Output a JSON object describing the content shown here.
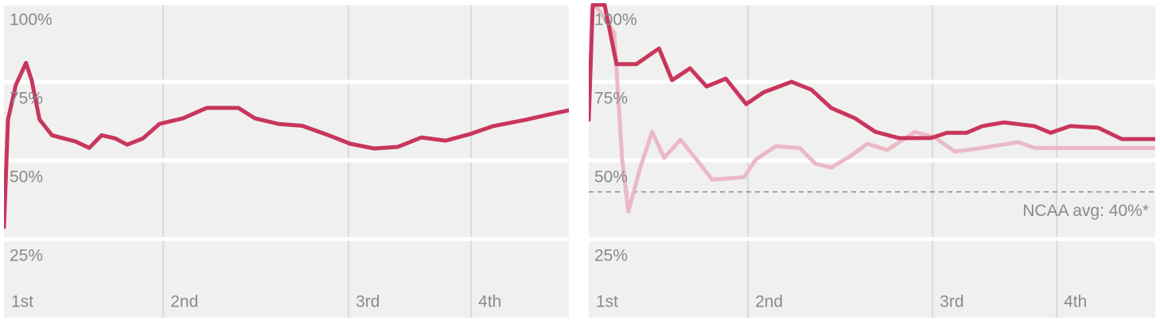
{
  "chart_data": [
    {
      "type": "line",
      "xlim": [
        0,
        100
      ],
      "ylim": [
        0,
        100
      ],
      "xticks": [
        {
          "value": 0,
          "label": "1st"
        },
        {
          "value": 28.2,
          "label": "2nd"
        },
        {
          "value": 61,
          "label": "3rd"
        },
        {
          "value": 82.7,
          "label": "4th"
        }
      ],
      "yticks": [
        {
          "value": 25,
          "label": "25%"
        },
        {
          "value": 50,
          "label": "50%"
        },
        {
          "value": 75,
          "label": "75%"
        },
        {
          "value": 100,
          "label": "100%"
        }
      ],
      "series": [
        {
          "color": "#c8365c",
          "x": [
            0,
            0.7,
            2.1,
            3.9,
            4.9,
            6.3,
            8.5,
            10.6,
            12.7,
            15.1,
            17.3,
            19.7,
            21.8,
            24.6,
            27.5,
            31.7,
            35.9,
            41.5,
            44.4,
            48.6,
            52.8,
            57,
            61.3,
            65.5,
            69.7,
            73.9,
            78.2,
            82.4,
            86.6,
            92.3,
            96.5,
            100
          ],
          "values": [
            28.8,
            62.9,
            74,
            81,
            75.5,
            63,
            58,
            57,
            56,
            54,
            58,
            57,
            55,
            57,
            61.6,
            63.4,
            66.7,
            66.7,
            63.4,
            61.6,
            61,
            58.3,
            55.3,
            53.8,
            54.3,
            57.3,
            56.3,
            58.3,
            60.9,
            62.9,
            64.6,
            65.9
          ]
        }
      ]
    },
    {
      "type": "line",
      "xlim": [
        0,
        100
      ],
      "ylim": [
        0,
        100
      ],
      "xticks": [
        {
          "value": 0,
          "label": "1st"
        },
        {
          "value": 28.1,
          "label": "2nd"
        },
        {
          "value": 60.7,
          "label": "3rd"
        },
        {
          "value": 82.6,
          "label": "4th"
        }
      ],
      "yticks": [
        {
          "value": 25,
          "label": "25%"
        },
        {
          "value": 50,
          "label": "50%"
        },
        {
          "value": 75,
          "label": "75%"
        },
        {
          "value": 100,
          "label": "100%"
        }
      ],
      "reference_line": {
        "value": 40,
        "label": "NCAA avg: 40%*"
      },
      "series": [
        {
          "color": "#ebb9c5",
          "x": [
            1.1,
            4.5,
            5.9,
            7,
            9.1,
            11.2,
            13.3,
            16.2,
            19,
            21.8,
            27.4,
            29.5,
            33,
            37.2,
            40,
            42.8,
            46.3,
            49.2,
            52.7,
            57.6,
            61.1,
            64.6,
            68.8,
            75.8,
            78.7,
            100
          ],
          "values": [
            99.5,
            90.7,
            50.3,
            33.8,
            47.7,
            59.1,
            50.8,
            56.6,
            50.3,
            43.9,
            44.7,
            50.3,
            54.5,
            54,
            49,
            47.7,
            51.5,
            55.3,
            53.3,
            59.1,
            57.3,
            52.8,
            53.8,
            55.8,
            54,
            54
          ]
        },
        {
          "color": "#c8365c",
          "x": [
            0,
            0.7,
            2.8,
            4.9,
            8.4,
            12.4,
            14.7,
            17.9,
            20.8,
            24.2,
            27.8,
            30.9,
            35.8,
            39.3,
            42.8,
            47,
            50.6,
            54.8,
            60.4,
            63.2,
            66.7,
            69.5,
            73.3,
            78.7,
            81.5,
            85,
            89.9,
            94.1,
            100
          ],
          "values": [
            62.9,
            99.5,
            99.5,
            80.6,
            80.6,
            85.6,
            75.5,
            79.3,
            73.5,
            76,
            67.9,
            71.7,
            75,
            72.5,
            66.7,
            63.4,
            59.1,
            57.1,
            57.1,
            58.8,
            58.8,
            60.9,
            62.1,
            60.9,
            58.8,
            60.9,
            60.4,
            56.8,
            56.8
          ]
        }
      ]
    }
  ]
}
